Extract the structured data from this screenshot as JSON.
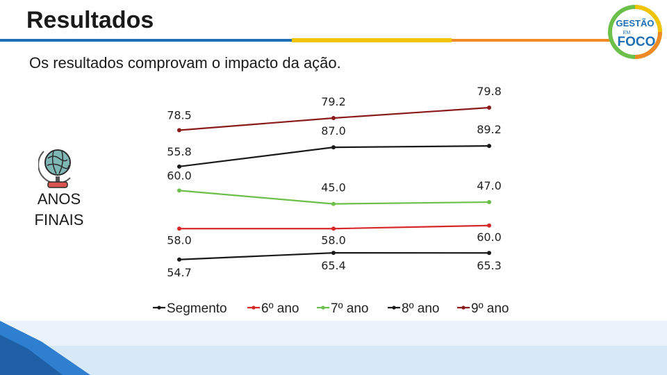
{
  "slide": {
    "title": "Resultados",
    "subtitle": "Os resultados comprovam o impacto da ação.",
    "side_label_line1": "ANOS",
    "side_label_line2": "FINAIS",
    "logo_text_top": "GESTÃO",
    "logo_text_mid": "EM",
    "logo_text_bottom": "FOCO",
    "accent_colors": {
      "rule_blue": "#1f6fb5",
      "rule_yellow": "#f2c300",
      "rule_orange": "#f08a24",
      "band_blue": "#2f7fd0"
    }
  },
  "chart_data": {
    "type": "line",
    "title": "",
    "xlabel": "",
    "ylabel": "",
    "categories": [
      "",
      "",
      ""
    ],
    "grid": false,
    "legend_placement": "bottom",
    "series": [
      {
        "name": "9º ano",
        "color": "#8b1a1a",
        "values": [
          78.5,
          79.2,
          79.8
        ],
        "labels": [
          "78.5",
          "79.2",
          "79.8"
        ]
      },
      {
        "name": "8º ano",
        "color": "#1a1a1a",
        "values": [
          55.8,
          87.0,
          89.2
        ],
        "labels": [
          "55.8",
          "87.0",
          "89.2"
        ]
      },
      {
        "name": "7º ano",
        "color": "#6cc04a",
        "values": [
          60.0,
          45.0,
          47.0
        ],
        "labels": [
          "60.0",
          "45.0",
          "47.0"
        ]
      },
      {
        "name": "6º ano",
        "color": "#d62828",
        "values": [
          58.0,
          58.0,
          60.0
        ],
        "labels": [
          "58.0",
          "58.0",
          "60.0"
        ]
      },
      {
        "name": "Segmento",
        "color": "#1a1a1a",
        "values": [
          54.7,
          65.4,
          65.3
        ],
        "labels": [
          "54.7",
          "65.4",
          "65.3"
        ]
      }
    ],
    "legend": [
      {
        "name": "Segmento",
        "color": "#1a1a1a"
      },
      {
        "name": "6º ano",
        "color": "#d62828"
      },
      {
        "name": "7º ano",
        "color": "#6cc04a"
      },
      {
        "name": "8º ano",
        "color": "#1a1a1a"
      },
      {
        "name": "9º ano",
        "color": "#8b1a1a"
      }
    ]
  }
}
